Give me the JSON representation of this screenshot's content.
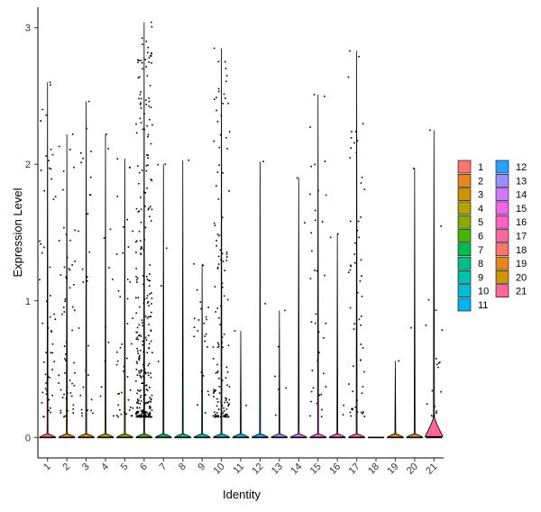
{
  "chart_data": {
    "type": "violin",
    "xlabel": "Identity",
    "ylabel": "Expression Level",
    "categories": [
      "1",
      "2",
      "3",
      "4",
      "5",
      "6",
      "7",
      "8",
      "9",
      "10",
      "11",
      "12",
      "13",
      "14",
      "15",
      "16",
      "17",
      "18",
      "19",
      "20",
      "21"
    ],
    "ylim": [
      -0.15,
      3.15
    ],
    "yticks": [
      "0",
      "1",
      "2",
      "3"
    ],
    "grid": false,
    "legend_position": "right",
    "legend_columns": [
      [
        "1",
        "2",
        "3",
        "4",
        "5",
        "6",
        "7",
        "8",
        "9",
        "10",
        "11"
      ],
      [
        "12",
        "13",
        "14",
        "15",
        "16",
        "17",
        "18",
        "19",
        "20",
        "21"
      ]
    ],
    "colors": [
      "#F8766D",
      "#E7851E",
      "#D09400",
      "#B2A100",
      "#89AC00",
      "#45B500",
      "#00BC51",
      "#00C087",
      "#00C0B2",
      "#00BCD6",
      "#00B3F2",
      "#29A3FF",
      "#9C8DFF",
      "#D277FF",
      "#F166E8",
      "#FF61C7",
      "#FF689E",
      "#F8766D",
      "#E7851E",
      "#D09400",
      "#FF6699"
    ],
    "series": [
      {
        "identity": "1",
        "max": 2.6,
        "n_points": 55
      },
      {
        "identity": "2",
        "max": 2.22,
        "n_points": 60
      },
      {
        "identity": "3",
        "max": 2.46,
        "n_points": 30
      },
      {
        "identity": "4",
        "max": 2.22,
        "n_points": 12
      },
      {
        "identity": "5",
        "max": 2.04,
        "n_points": 45
      },
      {
        "identity": "6",
        "max": 3.04,
        "n_points": 320
      },
      {
        "identity": "7",
        "max": 2.0,
        "n_points": 5
      },
      {
        "identity": "8",
        "max": 2.03,
        "n_points": 2
      },
      {
        "identity": "9",
        "max": 1.27,
        "n_points": 25
      },
      {
        "identity": "10",
        "max": 2.85,
        "n_points": 140
      },
      {
        "identity": "11",
        "max": 0.78,
        "n_points": 2
      },
      {
        "identity": "12",
        "max": 2.02,
        "n_points": 2
      },
      {
        "identity": "13",
        "max": 0.93,
        "n_points": 6
      },
      {
        "identity": "14",
        "max": 1.9,
        "n_points": 2
      },
      {
        "identity": "15",
        "max": 2.51,
        "n_points": 40
      },
      {
        "identity": "16",
        "max": 1.49,
        "n_points": 4
      },
      {
        "identity": "17",
        "max": 2.83,
        "n_points": 60
      },
      {
        "identity": "18",
        "max": 0.0,
        "n_points": 0
      },
      {
        "identity": "19",
        "max": 0.56,
        "n_points": 1
      },
      {
        "identity": "20",
        "max": 1.97,
        "n_points": 2
      },
      {
        "identity": "21",
        "max": 2.25,
        "n_points": 20
      }
    ]
  }
}
